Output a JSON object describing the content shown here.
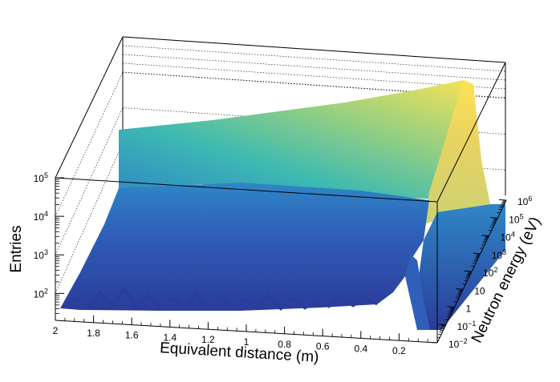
{
  "chart_data": {
    "type": "surface3d",
    "title": "",
    "xlabel": "Equivalent distance (m)",
    "ylabel": "Neutron energy (eV)",
    "zlabel": "Entries",
    "x_ticks": [
      "2",
      "1.8",
      "1.6",
      "1.4",
      "1.2",
      "1",
      "0.8",
      "0.6",
      "0.4",
      "0.2"
    ],
    "x_range": [
      0,
      2
    ],
    "y_scale": "log",
    "y_ticks": [
      {
        "base": "10",
        "exp": "−2"
      },
      {
        "base": "10",
        "exp": "−1"
      },
      {
        "base": "1",
        "exp": ""
      },
      {
        "base": "10",
        "exp": ""
      },
      {
        "base": "10",
        "exp": "2"
      },
      {
        "base": "10",
        "exp": "3"
      },
      {
        "base": "10",
        "exp": "4"
      },
      {
        "base": "10",
        "exp": "5"
      },
      {
        "base": "10",
        "exp": "6"
      }
    ],
    "y_range": [
      0.01,
      1000000
    ],
    "z_scale": "log",
    "z_ticks": [
      {
        "base": "10",
        "exp": "2"
      },
      {
        "base": "10",
        "exp": "3"
      },
      {
        "base": "10",
        "exp": "4"
      },
      {
        "base": "10",
        "exp": "5"
      }
    ],
    "z_range": [
      20,
      100000
    ],
    "ridge_profile": [
      {
        "distance": 2.0,
        "peak_energy_eV": 1000000,
        "entries": 10000
      },
      {
        "distance": 1.6,
        "peak_energy_eV": 1000000,
        "entries": 15000
      },
      {
        "distance": 1.2,
        "peak_energy_eV": 1000000,
        "entries": 22000
      },
      {
        "distance": 0.8,
        "peak_energy_eV": 1000000,
        "entries": 32000
      },
      {
        "distance": 0.4,
        "peak_energy_eV": 1000000,
        "entries": 45000
      },
      {
        "distance": 0.1,
        "peak_energy_eV": 1000000,
        "entries": 60000
      },
      {
        "distance": 0.02,
        "peak_energy_eV": 0.1,
        "entries": 30
      }
    ],
    "front_floor_entries": 60,
    "palette": [
      "#2b3c9a",
      "#2f5fb8",
      "#2f86c6",
      "#2aa4c4",
      "#3dbab2",
      "#5ec79a",
      "#93cf82",
      "#c4d276",
      "#e8d263",
      "#fbe354"
    ],
    "grid": true
  }
}
